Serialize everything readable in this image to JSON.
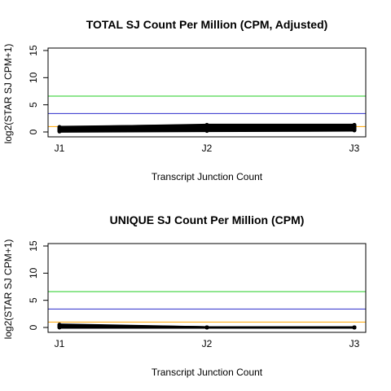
{
  "chart_data": [
    {
      "type": "line",
      "title": "TOTAL SJ Count Per Million (CPM, Adjusted)",
      "xlabel": "Transcript Junction Count",
      "ylabel": "log2(STAR SJ CPM+1)",
      "categories": [
        "J1",
        "J2",
        "J3"
      ],
      "ylim": [
        0,
        15
      ],
      "yticks": [
        0,
        5,
        10,
        15
      ],
      "reference_lines": [
        {
          "y": 6.6,
          "color": "#22cc22"
        },
        {
          "y": 3.4,
          "color": "#2b2bcc"
        },
        {
          "y": 1.0,
          "color": "#ffa500"
        }
      ],
      "series_color": "#000000",
      "series": [
        {
          "values": [
            0.1,
            0.2,
            0.3
          ]
        },
        {
          "values": [
            0.2,
            0.4,
            0.5
          ]
        },
        {
          "values": [
            0.3,
            0.6,
            0.7
          ]
        },
        {
          "values": [
            0.4,
            0.8,
            0.9
          ]
        },
        {
          "values": [
            0.5,
            1.0,
            1.0
          ]
        },
        {
          "values": [
            0.6,
            1.1,
            1.1
          ]
        },
        {
          "values": [
            0.7,
            1.2,
            1.2
          ]
        },
        {
          "values": [
            0.8,
            1.3,
            1.3
          ]
        },
        {
          "values": [
            0.9,
            1.2,
            1.1
          ]
        },
        {
          "values": [
            0.5,
            0.7,
            0.6
          ]
        }
      ]
    },
    {
      "type": "line",
      "title": "UNIQUE SJ Count Per Million (CPM)",
      "xlabel": "Transcript Junction Count",
      "ylabel": "log2(STAR SJ CPM+1)",
      "categories": [
        "J1",
        "J2",
        "J3"
      ],
      "ylim": [
        0,
        15
      ],
      "yticks": [
        0,
        5,
        10,
        15
      ],
      "reference_lines": [
        {
          "y": 6.6,
          "color": "#22cc22"
        },
        {
          "y": 3.4,
          "color": "#2b2bcc"
        },
        {
          "y": 1.0,
          "color": "#ffa500"
        }
      ],
      "series_color": "#000000",
      "series": [
        {
          "values": [
            0.0,
            0.0,
            0.0
          ]
        },
        {
          "values": [
            0.1,
            0.0,
            0.0
          ]
        },
        {
          "values": [
            0.2,
            0.0,
            0.0
          ]
        },
        {
          "values": [
            0.3,
            0.0,
            0.0
          ]
        },
        {
          "values": [
            0.4,
            0.0,
            0.0
          ]
        },
        {
          "values": [
            0.5,
            0.0,
            0.0
          ]
        }
      ]
    }
  ]
}
